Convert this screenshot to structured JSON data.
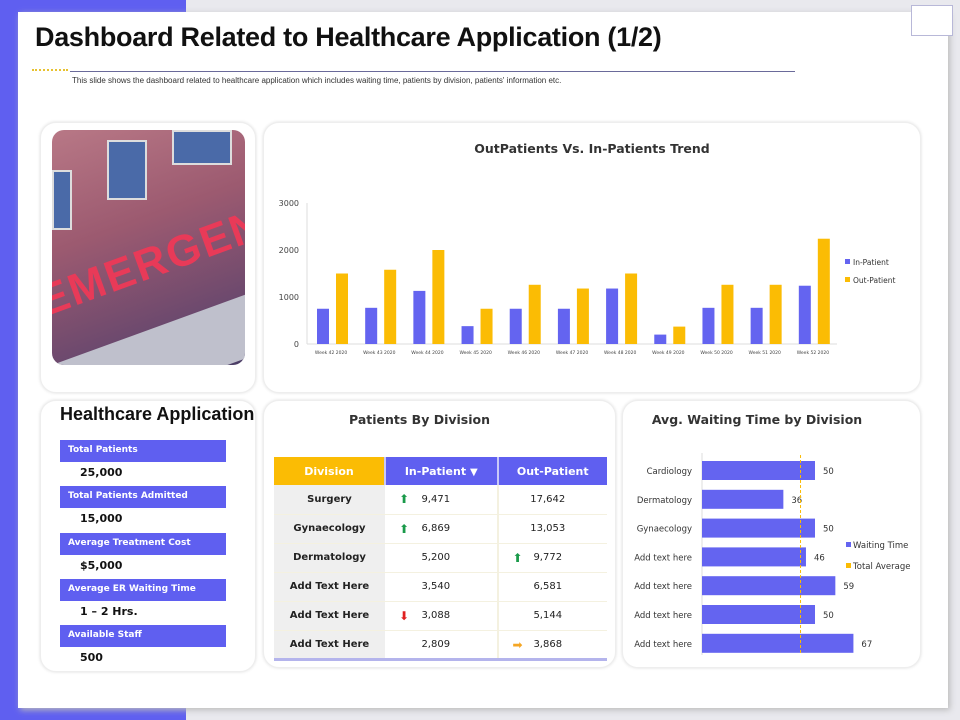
{
  "header": {
    "title": "Dashboard Related to Healthcare Application (1/2)",
    "subtitle": "This slide shows the dashboard related  to healthcare application which includes  waiting time, patients by division, patients' information etc."
  },
  "photo": {
    "sign_text": "EMERGENCY"
  },
  "colors": {
    "accent": "#5f5ff0",
    "yellow": "#fbbc04",
    "up": "#1a9a4a",
    "down": "#e02020",
    "neutral": "#f5a623"
  },
  "kpis": {
    "title": "Healthcare Application",
    "items": [
      {
        "label": "Total Patients",
        "value": "25,000"
      },
      {
        "label": "Total Patients Admitted",
        "value": "15,000"
      },
      {
        "label": "Average  Treatment  Cost",
        "value": "$5,000"
      },
      {
        "label": "Average  ER Waiting Time",
        "value": "1 – 2 Hrs."
      },
      {
        "label": "Available  Staff",
        "value": "500"
      }
    ]
  },
  "division_table": {
    "title": "Patients By Division",
    "headers": [
      "Division",
      "In-Patient",
      "Out-Patient"
    ],
    "rows": [
      {
        "division": "Surgery",
        "in": "9,471",
        "in_icon": "arrow-up",
        "out": "17,642",
        "out_icon": ""
      },
      {
        "division": "Gynaecology",
        "in": "6,869",
        "in_icon": "arrow-up",
        "out": "13,053",
        "out_icon": ""
      },
      {
        "division": "Dermatology",
        "in": "5,200",
        "in_icon": "",
        "out": "9,772",
        "out_icon": "arrow-up"
      },
      {
        "division": "Add Text Here",
        "in": "3,540",
        "in_icon": "",
        "out": "6,581",
        "out_icon": ""
      },
      {
        "division": "Add Text Here",
        "in": "3,088",
        "in_icon": "arrow-down",
        "out": "5,144",
        "out_icon": ""
      },
      {
        "division": "Add Text Here",
        "in": "2,809",
        "in_icon": "",
        "out": "3,868",
        "out_icon": "arrow-right"
      }
    ]
  },
  "chart_data": [
    {
      "type": "bar",
      "title": "OutPatients Vs. In-Patients Trend",
      "categories": [
        "Week 42 2020",
        "Week 43 2020",
        "Week 44 2020",
        "Week 45 2020",
        "Week 46 2020",
        "Week 47 2020",
        "Week 48 2020",
        "Week 49 2020",
        "Week 50 2020",
        "Week 51 2020",
        "Week 52 2020"
      ],
      "series": [
        {
          "name": "In-Patient",
          "color": "#6464f0",
          "values": [
            750,
            770,
            1130,
            380,
            750,
            750,
            1180,
            200,
            770,
            770,
            1240
          ]
        },
        {
          "name": "Out-Patient",
          "color": "#fbbc04",
          "values": [
            1500,
            1580,
            2000,
            750,
            1260,
            1180,
            1500,
            370,
            1260,
            1260,
            2240
          ]
        }
      ],
      "yticks": [
        "0",
        "1000",
        "2000",
        "3000"
      ],
      "ylim": [
        0,
        3000
      ],
      "legend": "right",
      "grid": false
    },
    {
      "type": "bar",
      "orientation": "horizontal",
      "title": "Avg. Waiting Time by Division",
      "categories": [
        "Cardiology",
        "Dermatology",
        "Gynaecology",
        "Add text here",
        "Add text here",
        "Add text here",
        "Add text here"
      ],
      "series": [
        {
          "name": "Waiting Time",
          "color": "#6464f0",
          "values": [
            50,
            36,
            50,
            46,
            59,
            50,
            67
          ]
        },
        {
          "name": "Total Average",
          "color": "#fbbc04",
          "type": "line",
          "value": 52
        }
      ],
      "legend": "right"
    }
  ]
}
